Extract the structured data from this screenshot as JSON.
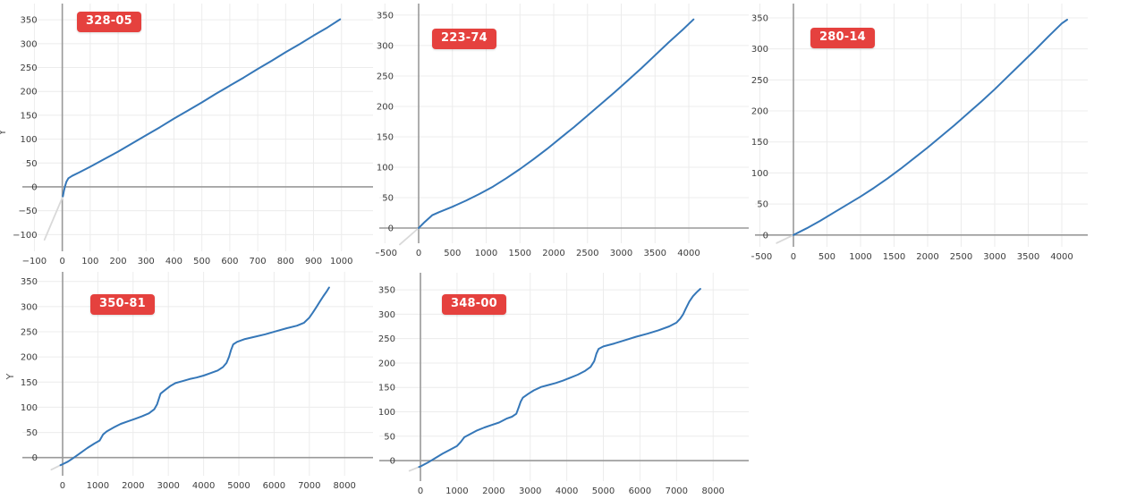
{
  "page": {
    "background": "#ffffff"
  },
  "colors": {
    "line": "#3577b8",
    "extension_segment": "#d9d9d9",
    "grid": "#ececec",
    "zero_axis": "#999999",
    "tick_label": "#3d3d3d",
    "axis_title": "#555555",
    "badge_bg": "#e5413e",
    "badge_text": "#ffffff"
  },
  "chart_data": [
    {
      "badge": "328-05",
      "type": "line",
      "title": "",
      "xlabel": "",
      "ylabel": "Y",
      "grid": true,
      "xlim": [
        -143,
        1113
      ],
      "ylim": [
        -135,
        384
      ],
      "xticks": [
        -100,
        0,
        100,
        200,
        300,
        400,
        500,
        600,
        700,
        800,
        900,
        1000
      ],
      "yticks": [
        -100,
        -50,
        0,
        50,
        100,
        150,
        200,
        250,
        300,
        350
      ],
      "series": [
        {
          "name": "main",
          "points": [
            [
              2,
              -20
            ],
            [
              6,
              -8
            ],
            [
              10,
              2
            ],
            [
              15,
              11
            ],
            [
              22,
              18
            ],
            [
              35,
              23
            ],
            [
              60,
              30
            ],
            [
              100,
              42
            ],
            [
              150,
              58
            ],
            [
              200,
              74
            ],
            [
              250,
              91
            ],
            [
              300,
              108
            ],
            [
              350,
              125
            ],
            [
              400,
              143
            ],
            [
              450,
              160
            ],
            [
              500,
              177
            ],
            [
              550,
              195
            ],
            [
              600,
              212
            ],
            [
              650,
              229
            ],
            [
              700,
              247
            ],
            [
              750,
              264
            ],
            [
              800,
              282
            ],
            [
              850,
              299
            ],
            [
              900,
              317
            ],
            [
              950,
              334
            ],
            [
              995,
              351
            ]
          ]
        },
        {
          "name": "extension",
          "points": [
            [
              2,
              -20
            ],
            [
              -64,
              -111
            ]
          ]
        }
      ]
    },
    {
      "badge": "223-74",
      "type": "line",
      "title": "",
      "xlabel": "",
      "ylabel": "",
      "grid": true,
      "xlim": [
        -583,
        4887
      ],
      "ylim": [
        -25,
        369
      ],
      "xticks": [
        -500,
        0,
        500,
        1000,
        1500,
        2000,
        2500,
        3000,
        3500,
        4000
      ],
      "yticks": [
        0,
        50,
        100,
        150,
        200,
        250,
        300,
        350
      ],
      "series": [
        {
          "name": "main",
          "points": [
            [
              0,
              0
            ],
            [
              90,
              10
            ],
            [
              200,
              21
            ],
            [
              300,
              26
            ],
            [
              500,
              35
            ],
            [
              700,
              45
            ],
            [
              900,
              56
            ],
            [
              1100,
              68
            ],
            [
              1300,
              82
            ],
            [
              1500,
              97
            ],
            [
              1700,
              113
            ],
            [
              1900,
              130
            ],
            [
              2100,
              148
            ],
            [
              2300,
              166
            ],
            [
              2500,
              185
            ],
            [
              2700,
              204
            ],
            [
              2900,
              223
            ],
            [
              3100,
              243
            ],
            [
              3300,
              263
            ],
            [
              3500,
              284
            ],
            [
              3700,
              305
            ],
            [
              3900,
              325
            ],
            [
              4070,
              343
            ]
          ]
        },
        {
          "name": "extension",
          "points": [
            [
              0,
              0
            ],
            [
              -280,
              -27
            ]
          ]
        }
      ]
    },
    {
      "badge": "280-14",
      "type": "line",
      "title": "",
      "xlabel": "",
      "ylabel": "",
      "grid": true,
      "xlim": [
        -573,
        4387
      ],
      "ylim": [
        -19,
        373
      ],
      "xticks": [
        -500,
        0,
        500,
        1000,
        1500,
        2000,
        2500,
        3000,
        3500,
        4000
      ],
      "yticks": [
        0,
        50,
        100,
        150,
        200,
        250,
        300,
        350
      ],
      "series": [
        {
          "name": "main",
          "points": [
            [
              0,
              0
            ],
            [
              200,
              11
            ],
            [
              400,
              23
            ],
            [
              600,
              36
            ],
            [
              800,
              49
            ],
            [
              1000,
              62
            ],
            [
              1200,
              76
            ],
            [
              1400,
              91
            ],
            [
              1600,
              107
            ],
            [
              1800,
              124
            ],
            [
              2000,
              141
            ],
            [
              2200,
              159
            ],
            [
              2400,
              177
            ],
            [
              2600,
              196
            ],
            [
              2800,
              215
            ],
            [
              3000,
              235
            ],
            [
              3200,
              256
            ],
            [
              3400,
              277
            ],
            [
              3600,
              298
            ],
            [
              3800,
              320
            ],
            [
              4000,
              341
            ],
            [
              4080,
              347
            ]
          ]
        },
        {
          "name": "extension",
          "points": [
            [
              0,
              0
            ],
            [
              -250,
              -13
            ]
          ]
        }
      ]
    },
    {
      "badge": "350-81",
      "type": "line",
      "title": "",
      "xlabel": "",
      "ylabel": "Y",
      "grid": true,
      "xlim": [
        -1142,
        8807
      ],
      "ylim": [
        -36,
        369
      ],
      "xticks": [
        0,
        1000,
        2000,
        3000,
        4000,
        5000,
        6000,
        7000,
        8000
      ],
      "yticks": [
        0,
        50,
        100,
        150,
        200,
        250,
        300,
        350
      ],
      "series": [
        {
          "name": "main",
          "points": [
            [
              -60,
              -15
            ],
            [
              0,
              -13
            ],
            [
              150,
              -8
            ],
            [
              300,
              -1
            ],
            [
              500,
              9
            ],
            [
              700,
              19
            ],
            [
              900,
              28
            ],
            [
              1050,
              34
            ],
            [
              1150,
              46
            ],
            [
              1250,
              52
            ],
            [
              1450,
              60
            ],
            [
              1650,
              67
            ],
            [
              1850,
              72
            ],
            [
              2050,
              77
            ],
            [
              2250,
              82
            ],
            [
              2450,
              88
            ],
            [
              2600,
              96
            ],
            [
              2680,
              106
            ],
            [
              2730,
              117
            ],
            [
              2780,
              127
            ],
            [
              2900,
              134
            ],
            [
              3050,
              142
            ],
            [
              3200,
              148
            ],
            [
              3400,
              152
            ],
            [
              3600,
              156
            ],
            [
              3800,
              159
            ],
            [
              4000,
              163
            ],
            [
              4200,
              168
            ],
            [
              4400,
              173
            ],
            [
              4550,
              180
            ],
            [
              4650,
              188
            ],
            [
              4720,
              200
            ],
            [
              4780,
              214
            ],
            [
              4840,
              225
            ],
            [
              4950,
              230
            ],
            [
              5150,
              235
            ],
            [
              5450,
              240
            ],
            [
              5750,
              245
            ],
            [
              6050,
              251
            ],
            [
              6350,
              257
            ],
            [
              6650,
              262
            ],
            [
              6850,
              268
            ],
            [
              7000,
              278
            ],
            [
              7100,
              288
            ],
            [
              7200,
              299
            ],
            [
              7300,
              310
            ],
            [
              7400,
              321
            ],
            [
              7500,
              331
            ],
            [
              7560,
              338
            ]
          ]
        },
        {
          "name": "extension",
          "points": [
            [
              -60,
              -15
            ],
            [
              -320,
              -24
            ]
          ]
        }
      ]
    },
    {
      "badge": "348-00",
      "type": "line",
      "title": "",
      "xlabel": "",
      "ylabel": "",
      "grid": true,
      "xlim": [
        -1125,
        8973
      ],
      "ylim": [
        -42,
        385
      ],
      "xticks": [
        0,
        1000,
        2000,
        3000,
        4000,
        5000,
        6000,
        7000,
        8000
      ],
      "yticks": [
        0,
        50,
        100,
        150,
        200,
        250,
        300,
        350
      ],
      "series": [
        {
          "name": "main",
          "points": [
            [
              -40,
              -13
            ],
            [
              0,
              -12
            ],
            [
              200,
              -4
            ],
            [
              400,
              5
            ],
            [
              600,
              14
            ],
            [
              800,
              22
            ],
            [
              1000,
              30
            ],
            [
              1100,
              38
            ],
            [
              1200,
              48
            ],
            [
              1350,
              54
            ],
            [
              1550,
              62
            ],
            [
              1750,
              68
            ],
            [
              1950,
              73
            ],
            [
              2150,
              78
            ],
            [
              2350,
              86
            ],
            [
              2500,
              90
            ],
            [
              2620,
              96
            ],
            [
              2690,
              110
            ],
            [
              2740,
              121
            ],
            [
              2800,
              129
            ],
            [
              2950,
              137
            ],
            [
              3100,
              144
            ],
            [
              3300,
              151
            ],
            [
              3500,
              155
            ],
            [
              3700,
              159
            ],
            [
              3900,
              164
            ],
            [
              4100,
              170
            ],
            [
              4300,
              176
            ],
            [
              4500,
              184
            ],
            [
              4650,
              192
            ],
            [
              4750,
              204
            ],
            [
              4810,
              219
            ],
            [
              4870,
              229
            ],
            [
              5000,
              234
            ],
            [
              5300,
              240
            ],
            [
              5600,
              247
            ],
            [
              5900,
              254
            ],
            [
              6200,
              260
            ],
            [
              6500,
              267
            ],
            [
              6800,
              275
            ],
            [
              7000,
              283
            ],
            [
              7100,
              291
            ],
            [
              7180,
              300
            ],
            [
              7250,
              311
            ],
            [
              7350,
              326
            ],
            [
              7450,
              337
            ],
            [
              7550,
              345
            ],
            [
              7650,
              352
            ]
          ]
        },
        {
          "name": "extension",
          "points": [
            [
              -40,
              -13
            ],
            [
              -300,
              -21
            ]
          ]
        }
      ]
    }
  ]
}
